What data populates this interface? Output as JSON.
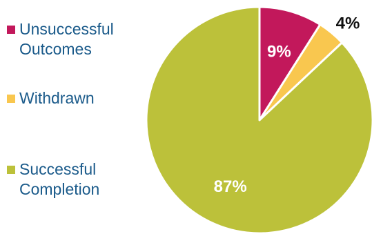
{
  "chart_data": {
    "type": "pie",
    "categories": [
      "Unsuccessful Outcomes",
      "Withdrawn",
      "Successful Completion"
    ],
    "values": [
      9,
      4,
      87
    ],
    "data_labels": [
      "9%",
      "4%",
      "87%"
    ],
    "colors": [
      "#c2185b",
      "#f9c74f",
      "#bcc13a"
    ],
    "legend": {
      "placement": "left",
      "entries": [
        "Unsuccessful\nOutcomes",
        "Withdrawn",
        "Successful\nCompletion"
      ]
    },
    "start_angle": "12 o'clock",
    "direction": "clockwise"
  }
}
